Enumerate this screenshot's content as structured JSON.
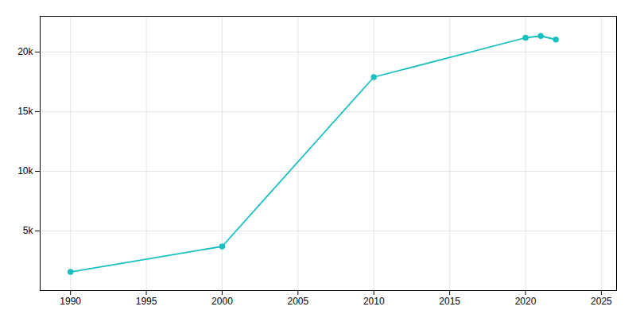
{
  "chart_data": {
    "type": "line",
    "x": [
      1990,
      2000,
      2010,
      2020,
      2021,
      2022
    ],
    "values": [
      1560,
      3700,
      17900,
      21200,
      21350,
      21050
    ],
    "color": "#1abfbf",
    "marker": "circle",
    "xlim": [
      1988,
      2026
    ],
    "xticks": [
      1990,
      1995,
      2000,
      2005,
      2010,
      2015,
      2020,
      2025
    ],
    "ylim": [
      0,
      23000
    ],
    "yticks": [
      {
        "value": 5000,
        "label": "5k"
      },
      {
        "value": 10000,
        "label": "10k"
      },
      {
        "value": 15000,
        "label": "15k"
      },
      {
        "value": 20000,
        "label": "20k"
      }
    ],
    "grid": true
  }
}
